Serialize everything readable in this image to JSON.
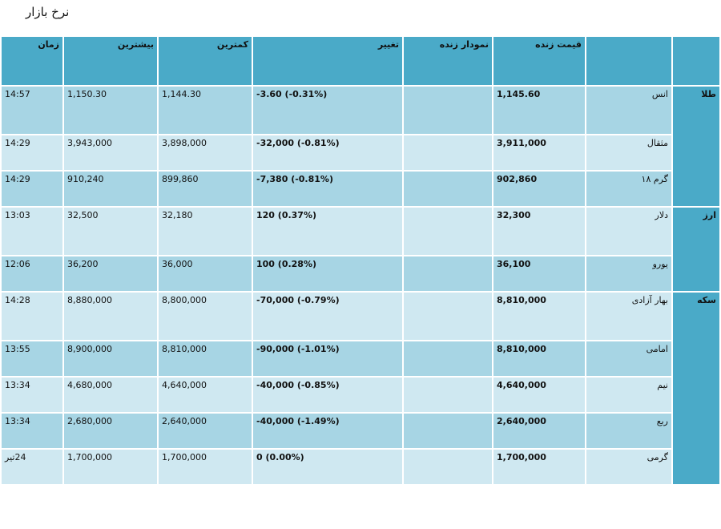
{
  "page": {
    "title": "نرخ بازار"
  },
  "headers": {
    "group": "",
    "name": "",
    "price": "قیمت زنده",
    "chart": "نمودار زنده",
    "change": "تغییر",
    "low": "کمترین",
    "high": "بیشترین",
    "time": "زمان"
  },
  "groups": [
    {
      "label": "طلا",
      "rows": [
        {
          "name": "انس",
          "price": "1,145.60",
          "change": "-3.60 (-0.31%)",
          "low": "1,144.30",
          "high": "1,150.30",
          "time": "14:57"
        },
        {
          "name": "مثقال",
          "price": "3,911,000",
          "change": "-32,000 (-0.81%)",
          "low": "3,898,000",
          "high": "3,943,000",
          "time": "14:29"
        },
        {
          "name": "گرم ۱۸",
          "price": "902,860",
          "change": "-7,380 (-0.81%)",
          "low": "899,860",
          "high": "910,240",
          "time": "14:29"
        }
      ]
    },
    {
      "label": "ارز",
      "rows": [
        {
          "name": "دلار",
          "price": "32,300",
          "change": "120 (0.37%)",
          "low": "32,180",
          "high": "32,500",
          "time": "13:03"
        },
        {
          "name": "یورو",
          "price": "36,100",
          "change": "100 (0.28%)",
          "low": "36,000",
          "high": "36,200",
          "time": "12:06"
        }
      ]
    },
    {
      "label": "سکه",
      "rows": [
        {
          "name": "بهار آزادی",
          "price": "8,810,000",
          "change": "-70,000 (-0.79%)",
          "low": "8,800,000",
          "high": "8,880,000",
          "time": "14:28"
        },
        {
          "name": "امامی",
          "price": "8,810,000",
          "change": "-90,000 (-1.01%)",
          "low": "8,810,000",
          "high": "8,900,000",
          "time": "13:55"
        },
        {
          "name": "نیم",
          "price": "4,640,000",
          "change": "-40,000 (-0.85%)",
          "low": "4,640,000",
          "high": "4,680,000",
          "time": "13:34"
        },
        {
          "name": "ربع",
          "price": "2,640,000",
          "change": "-40,000 (-1.49%)",
          "low": "2,640,000",
          "high": "2,680,000",
          "time": "13:34"
        },
        {
          "name": "گرمی",
          "price": "1,700,000",
          "change": "0 (0.00%)",
          "low": "1,700,000",
          "high": "1,700,000",
          "time": "24تیر"
        }
      ]
    }
  ]
}
